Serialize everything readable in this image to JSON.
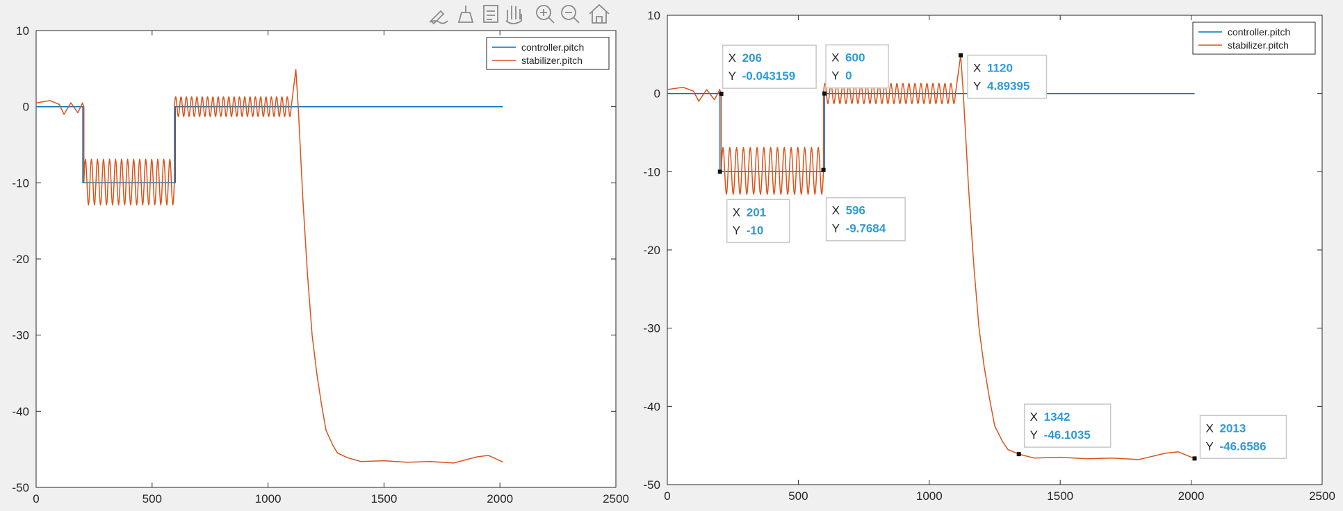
{
  "toolbar": {
    "buttons": [
      {
        "name": "edit-plot-button",
        "icon": "edit-plot-icon"
      },
      {
        "name": "brush-button",
        "icon": "brush-icon"
      },
      {
        "name": "data-tips-button",
        "icon": "data-tips-icon"
      },
      {
        "name": "pan-button",
        "icon": "hand-icon"
      },
      {
        "name": "zoom-in-button",
        "icon": "zoom-in-icon"
      },
      {
        "name": "zoom-out-button",
        "icon": "zoom-out-icon"
      },
      {
        "name": "home-button",
        "icon": "home-icon"
      }
    ]
  },
  "colors": {
    "controller": "#0072bd",
    "stabilizer": "#d95319",
    "axes_bg": "#ffffff",
    "figure_bg": "#f0f0f0",
    "datatip_value": "#2e9ad9",
    "datatip_label": "#262626"
  },
  "chart_data": [
    {
      "type": "line",
      "xlim": [
        0,
        2500
      ],
      "ylim": [
        -50,
        10
      ],
      "xticks": [
        "0",
        "500",
        "1000",
        "1500",
        "2000",
        "2500"
      ],
      "yticks": [
        "10",
        "0",
        "-10",
        "-20",
        "-30",
        "-40",
        "-50"
      ],
      "grid": false,
      "legend_position": "top-right",
      "series": [
        {
          "name": "controller.pitch",
          "x": [
            0,
            201,
            201,
            600,
            600,
            2013
          ],
          "y": [
            0,
            0,
            -10,
            -10,
            0,
            0
          ]
        },
        {
          "name": "stabilizer.pitch",
          "x": [
            0,
            60,
            100,
            120,
            150,
            180,
            200,
            206,
            215,
            240,
            300,
            400,
            500,
            590,
            596,
            610,
            640,
            700,
            800,
            900,
            1000,
            1100,
            1120,
            1130,
            1150,
            1170,
            1190,
            1210,
            1230,
            1250,
            1280,
            1300,
            1342,
            1400,
            1500,
            1600,
            1700,
            1800,
            1900,
            1950,
            2013
          ],
          "y": [
            0.5,
            0.8,
            0.3,
            -1.0,
            0.5,
            -0.8,
            0.5,
            -0.04,
            -9.5,
            -9.0,
            -10.0,
            -10.5,
            -10.2,
            -10.0,
            -9.77,
            -1.0,
            0.2,
            0.0,
            0.3,
            0.0,
            0.2,
            0.0,
            4.89,
            0.0,
            -12.0,
            -22.0,
            -30.0,
            -35.0,
            -39.0,
            -42.5,
            -44.5,
            -45.5,
            -46.1,
            -46.6,
            -46.5,
            -46.7,
            -46.6,
            -46.8,
            -46.0,
            -45.8,
            -46.66
          ]
        }
      ],
      "oscillations": [
        {
          "x0": 206,
          "x1": 596,
          "center": -9.9,
          "amplitude": 3.0,
          "cycles": 15
        },
        {
          "x0": 596,
          "x1": 1100,
          "center": 0.0,
          "amplitude": 1.3,
          "cycles": 22
        }
      ],
      "datatips": []
    },
    {
      "type": "line",
      "xlim": [
        0,
        2500
      ],
      "ylim": [
        -50,
        10
      ],
      "xticks": [
        "0",
        "500",
        "1000",
        "1500",
        "2000",
        "2500"
      ],
      "yticks": [
        "10",
        "0",
        "-10",
        "-20",
        "-30",
        "-40",
        "-50"
      ],
      "grid": false,
      "legend_position": "top-right",
      "series": [
        {
          "name": "controller.pitch",
          "x": [
            0,
            201,
            201,
            600,
            600,
            2013
          ],
          "y": [
            0,
            0,
            -10,
            -10,
            0,
            0
          ]
        },
        {
          "name": "stabilizer.pitch",
          "x": [
            0,
            60,
            100,
            120,
            150,
            180,
            200,
            206,
            215,
            240,
            300,
            400,
            500,
            590,
            596,
            610,
            640,
            700,
            800,
            900,
            1000,
            1100,
            1120,
            1130,
            1150,
            1170,
            1190,
            1210,
            1230,
            1250,
            1280,
            1300,
            1342,
            1400,
            1500,
            1600,
            1700,
            1800,
            1900,
            1950,
            2013
          ],
          "y": [
            0.5,
            0.8,
            0.3,
            -1.0,
            0.5,
            -0.8,
            0.5,
            -0.04,
            -9.5,
            -9.0,
            -10.0,
            -10.5,
            -10.2,
            -10.0,
            -9.77,
            -1.0,
            0.2,
            0.0,
            0.3,
            0.0,
            0.2,
            0.0,
            4.89,
            0.0,
            -12.0,
            -22.0,
            -30.0,
            -35.0,
            -39.0,
            -42.5,
            -44.5,
            -45.5,
            -46.1,
            -46.6,
            -46.5,
            -46.7,
            -46.6,
            -46.8,
            -46.0,
            -45.8,
            -46.66
          ]
        }
      ],
      "oscillations": [
        {
          "x0": 206,
          "x1": 596,
          "center": -9.9,
          "amplitude": 3.0,
          "cycles": 15
        },
        {
          "x0": 596,
          "x1": 1100,
          "center": 0.0,
          "amplitude": 1.3,
          "cycles": 22
        }
      ],
      "datatips": [
        {
          "x": 206,
          "y": -0.043159,
          "x_text": "206",
          "y_text": "-0.043159",
          "box_side": "upper-right"
        },
        {
          "x": 201,
          "y": -10,
          "x_text": "201",
          "y_text": "-10",
          "box_side": "upper-right"
        },
        {
          "x": 600,
          "y": 0,
          "x_text": "600",
          "y_text": "0",
          "box_side": "upper-right"
        },
        {
          "x": 596,
          "y": -9.7684,
          "x_text": "596",
          "y_text": "-9.7684",
          "box_side": "upper-right"
        },
        {
          "x": 1120,
          "y": 4.89395,
          "x_text": "1120",
          "y_text": "4.89395",
          "box_side": "lower-right"
        },
        {
          "x": 1342,
          "y": -46.1035,
          "x_text": "1342",
          "y_text": "-46.1035",
          "box_side": "upper-right"
        },
        {
          "x": 2013,
          "y": -46.6586,
          "x_text": "2013",
          "y_text": "-46.6586",
          "box_side": "upper-right"
        }
      ]
    }
  ]
}
